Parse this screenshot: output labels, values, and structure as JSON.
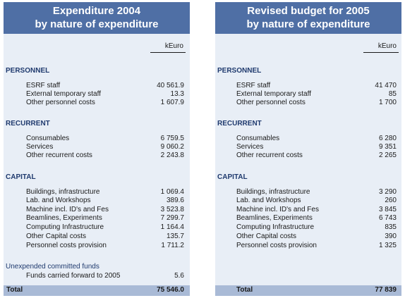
{
  "left": {
    "title_line1": "Expenditure 2004",
    "title_line2": "by nature of expenditure",
    "unit": "kEuro",
    "sections": [
      {
        "heading": "PERSONNEL",
        "items": [
          {
            "label": "ESRF staff",
            "value": "40 561.9"
          },
          {
            "label": "External temporary staff",
            "value": "13.3"
          },
          {
            "label": "Other personnel costs",
            "value": "1 607.9"
          }
        ]
      },
      {
        "heading": "RECURRENT",
        "items": [
          {
            "label": "Consumables",
            "value": "6 759.5"
          },
          {
            "label": "Services",
            "value": "9 060.2"
          },
          {
            "label": "Other recurrent costs",
            "value": "2 243.8"
          }
        ]
      },
      {
        "heading": "CAPITAL",
        "items": [
          {
            "label": "Buildings, infrastructure",
            "value": "1 069.4"
          },
          {
            "label": "Lab. and Workshops",
            "value": "389.6"
          },
          {
            "label": "Machine incl. ID's and Fes",
            "value": "3 523.8"
          },
          {
            "label": "Beamlines, Experiments",
            "value": "7 299.7"
          },
          {
            "label": "Computing Infrastructure",
            "value": "1 164.4"
          },
          {
            "label": "Other Capital costs",
            "value": "135.7"
          },
          {
            "label": "Personnel costs provision",
            "value": "1 711.2"
          }
        ]
      }
    ],
    "unexpended": {
      "heading": "Unexpended committed funds",
      "label": "Funds carried forward to 2005",
      "value": "5.6"
    },
    "total_label": "Total",
    "total_value": "75 546.0"
  },
  "right": {
    "title_line1": "Revised budget for 2005",
    "title_line2": "by nature of expenditure",
    "unit": "kEuro",
    "sections": [
      {
        "heading": "PERSONNEL",
        "items": [
          {
            "label": "ESRF staff",
            "value": "41 470"
          },
          {
            "label": "External temporary staff",
            "value": "85"
          },
          {
            "label": "Other personnel costs",
            "value": "1 700"
          }
        ]
      },
      {
        "heading": "RECURRENT",
        "items": [
          {
            "label": "Consumables",
            "value": "6 280"
          },
          {
            "label": "Services",
            "value": "9 351"
          },
          {
            "label": "Other recurrent costs",
            "value": "2 265"
          }
        ]
      },
      {
        "heading": "CAPITAL",
        "items": [
          {
            "label": "Buildings, infrastructure",
            "value": "3 290"
          },
          {
            "label": "Lab. and Workshops",
            "value": "260"
          },
          {
            "label": "Machine incl. ID's and Fes",
            "value": "3 845"
          },
          {
            "label": "Beamlines, Experiments",
            "value": "6 743"
          },
          {
            "label": "Computing Infrastructure",
            "value": "835"
          },
          {
            "label": "Other Capital costs",
            "value": "390"
          },
          {
            "label": "Personnel costs provision",
            "value": "1 325"
          }
        ]
      }
    ],
    "total_label": "Total",
    "total_value": "77 839"
  },
  "colors": {
    "header": "#4f6fa5",
    "panel": "#e8eef6",
    "total_bar": "#a9bad6",
    "section_text": "#1f3a6e"
  }
}
